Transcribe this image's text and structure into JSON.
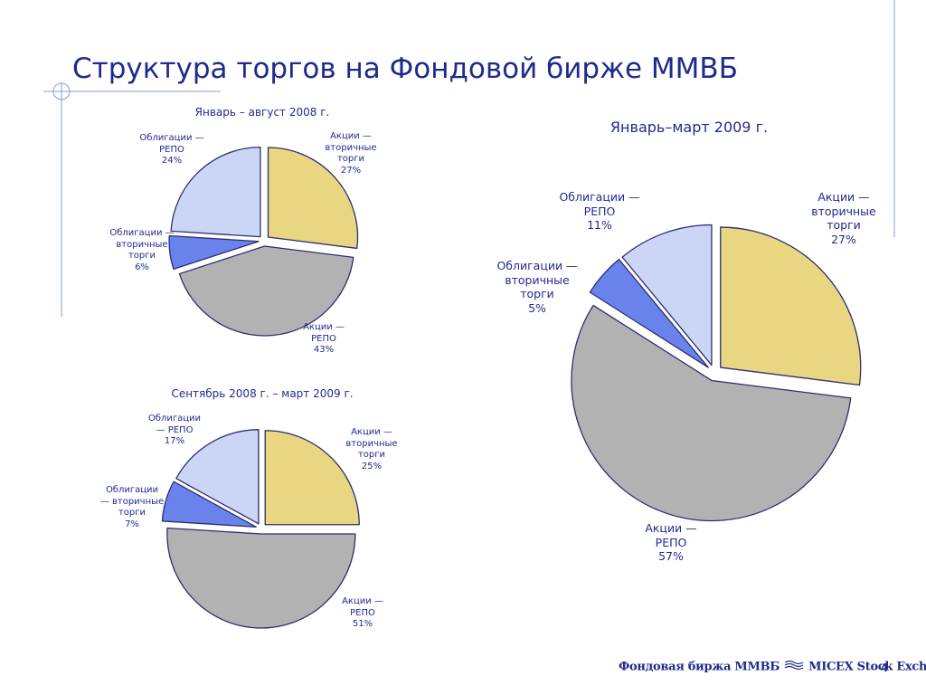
{
  "slide": {
    "title": "Структура торгов на Фондовой бирже ММВБ",
    "footer_logo_ru": "Фондовая биржа ММВБ",
    "footer_logo_en": "MICEX Stock Exchange",
    "page_number": "4"
  },
  "colors": {
    "stocks_secondary": "#e8d681",
    "stocks_repo": "#b2b2b2",
    "bonds_secondary": "#6a83ec",
    "bonds_repo": "#cbd6f6",
    "stroke": "#2b2f6e",
    "text": "#1f2b8c"
  },
  "chart_data": [
    {
      "type": "pie",
      "title": "Январь – август 2008 г.",
      "slices": [
        {
          "lines": [
            "Акции —",
            "вторичные",
            "торги",
            "27%"
          ],
          "value": 27,
          "color_key": "stocks_secondary"
        },
        {
          "lines": [
            "Акции —",
            "РЕПО",
            "43%"
          ],
          "value": 43,
          "color_key": "stocks_repo"
        },
        {
          "lines": [
            "Облигации —",
            "вторичные",
            "торги",
            "6%"
          ],
          "value": 6,
          "color_key": "bonds_secondary"
        },
        {
          "lines": [
            "Облигации —",
            "РЕПО",
            "24%"
          ],
          "value": 24,
          "color_key": "bonds_repo"
        }
      ]
    },
    {
      "type": "pie",
      "title": "Сентябрь 2008 г. – март 2009 г.",
      "slices": [
        {
          "lines": [
            "Акции —",
            "вторичные",
            "торги",
            "25%"
          ],
          "value": 25,
          "color_key": "stocks_secondary"
        },
        {
          "lines": [
            "Акции —",
            "РЕПО",
            "51%"
          ],
          "value": 51,
          "color_key": "stocks_repo"
        },
        {
          "lines": [
            "Облигации",
            "— вторичные",
            "торги",
            "7%"
          ],
          "value": 7,
          "color_key": "bonds_secondary"
        },
        {
          "lines": [
            "Облигации",
            "— РЕПО",
            "17%"
          ],
          "value": 17,
          "color_key": "bonds_repo"
        }
      ]
    },
    {
      "type": "pie",
      "title": "Январь–март 2009 г.",
      "slices": [
        {
          "lines": [
            "Акции —",
            "вторичные",
            "торги",
            "27%"
          ],
          "value": 27,
          "color_key": "stocks_secondary"
        },
        {
          "lines": [
            "Акции —",
            "РЕПО",
            "57%"
          ],
          "value": 57,
          "color_key": "stocks_repo"
        },
        {
          "lines": [
            "Облигации —",
            "вторичные",
            "торги",
            "5%"
          ],
          "value": 5,
          "color_key": "bonds_secondary"
        },
        {
          "lines": [
            "Облигации —",
            "РЕПО",
            "11%"
          ],
          "value": 11,
          "color_key": "bonds_repo"
        }
      ]
    }
  ]
}
